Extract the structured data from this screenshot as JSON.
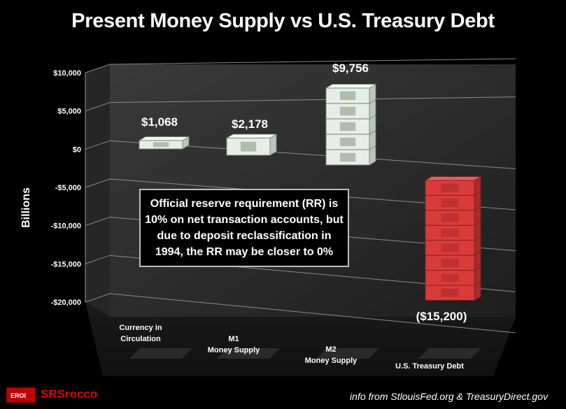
{
  "chart_data": {
    "type": "bar",
    "title": "Present Money Supply vs U.S. Treasury Debt",
    "ylabel": "Billions",
    "ylim": [
      -20000,
      10000
    ],
    "yticks": [
      10000,
      5000,
      0,
      -5000,
      -10000,
      -15000,
      -20000
    ],
    "ytick_labels": [
      "$10,000",
      "$5,000",
      "$0",
      "-$5,000",
      "-$10,000",
      "-$15,000",
      "-$20,000"
    ],
    "categories": [
      {
        "line1": "Currency in",
        "line2": "Circulation"
      },
      {
        "line1": "M1",
        "line2": "Money Supply"
      },
      {
        "line1": "M2",
        "line2": "Money Supply"
      },
      {
        "line1": "U.S. Treasury Debt",
        "line2": ""
      }
    ],
    "values": [
      1068,
      2178,
      9756,
      -15200
    ],
    "data_labels": [
      "$1,068",
      "$2,178",
      "$9,756",
      "($15,200)"
    ],
    "colors": {
      "positive": "#e8ede8",
      "negative": "#d93b3b",
      "wall": "#2d2d2d"
    },
    "grid": true,
    "style": "3d-stacked-money"
  },
  "annotation": {
    "line1": "Official reserve requirement (RR) is",
    "line2": "10% on net transaction accounts, but",
    "line3": "due to deposit reclassification in",
    "line4": "1994, the RR may be closer to 0%"
  },
  "footer": {
    "logo_text": "EROI",
    "brand": "SRSrocco",
    "source": "info from  StlouisFed.org & TreasuryDirect.gov"
  }
}
